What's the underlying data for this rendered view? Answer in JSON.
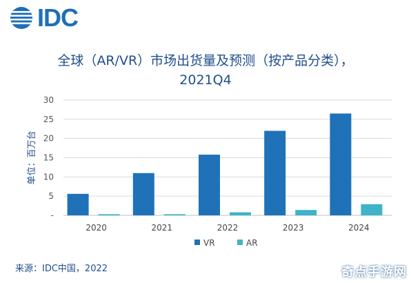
{
  "logo": {
    "text": "IDC"
  },
  "title": {
    "line1": "全球（AR/VR）市场出货量及预测（按产品分类），",
    "line2": "2021Q4"
  },
  "source": "来源：IDC中国，2022",
  "watermark": "奇点手游网",
  "chart_data": {
    "type": "bar",
    "title": "全球（AR/VR）市场出货量及预测（按产品分类）， 2021Q4",
    "xlabel": "",
    "ylabel": "单位：百万台",
    "categories": [
      "2020",
      "2021",
      "2022",
      "2023",
      "2024"
    ],
    "ylim": [
      0,
      30
    ],
    "yticks": [
      "-",
      "5",
      "10",
      "15",
      "20",
      "25",
      "30"
    ],
    "grid": true,
    "legend": "bottom-center",
    "series": [
      {
        "name": "VR",
        "color": "#1f72b8",
        "values": [
          5.6,
          11.0,
          15.8,
          22.0,
          26.5
        ]
      },
      {
        "name": "AR",
        "color": "#3fb3c8",
        "values": [
          0.3,
          0.3,
          0.8,
          1.4,
          2.9
        ]
      }
    ]
  }
}
